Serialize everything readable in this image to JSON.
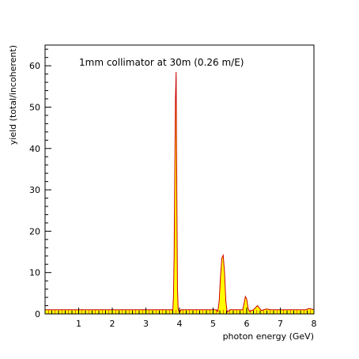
{
  "chart_data": {
    "type": "area",
    "annotation": "1mm collimator at 30m (0.26 m/E)",
    "xlabel": "photon energy (GeV)",
    "ylabel": "yield (total/incoherent)",
    "xlim": [
      0,
      8
    ],
    "ylim": [
      0,
      65
    ],
    "xticks": [
      1,
      2,
      3,
      4,
      5,
      6,
      7,
      8
    ],
    "yticks": [
      0,
      10,
      20,
      30,
      40,
      50,
      60
    ],
    "grid": false,
    "legend": "none",
    "colors": {
      "fill": "#ffff00",
      "line": "#cc0000",
      "axis": "#000000"
    },
    "series": [
      {
        "points": [
          [
            0,
            1
          ],
          [
            3.78,
            1
          ],
          [
            3.8,
            0.6
          ],
          [
            3.82,
            4
          ],
          [
            3.84,
            14
          ],
          [
            3.86,
            34
          ],
          [
            3.88,
            52
          ],
          [
            3.9,
            58.5
          ],
          [
            3.92,
            30
          ],
          [
            3.94,
            6
          ],
          [
            3.96,
            1.2
          ],
          [
            4.0,
            0.2
          ],
          [
            4.04,
            1
          ],
          [
            5.1,
            1
          ],
          [
            5.14,
            0.6
          ],
          [
            5.18,
            3
          ],
          [
            5.22,
            9
          ],
          [
            5.26,
            13.5
          ],
          [
            5.3,
            14.2
          ],
          [
            5.34,
            10
          ],
          [
            5.38,
            3
          ],
          [
            5.42,
            0.4
          ],
          [
            5.5,
            1
          ],
          [
            5.88,
            1
          ],
          [
            5.92,
            2.5
          ],
          [
            5.96,
            4.2
          ],
          [
            6.0,
            3.6
          ],
          [
            6.04,
            1.4
          ],
          [
            6.08,
            0.6
          ],
          [
            6.2,
            1
          ],
          [
            6.26,
            1.5
          ],
          [
            6.32,
            2.0
          ],
          [
            6.38,
            1.4
          ],
          [
            6.44,
            0.8
          ],
          [
            6.5,
            1
          ],
          [
            6.6,
            1.2
          ],
          [
            6.7,
            1.0
          ],
          [
            7.0,
            1
          ],
          [
            7.75,
            1
          ],
          [
            7.85,
            1.3
          ],
          [
            7.92,
            1.2
          ],
          [
            8.0,
            1
          ]
        ]
      }
    ]
  }
}
